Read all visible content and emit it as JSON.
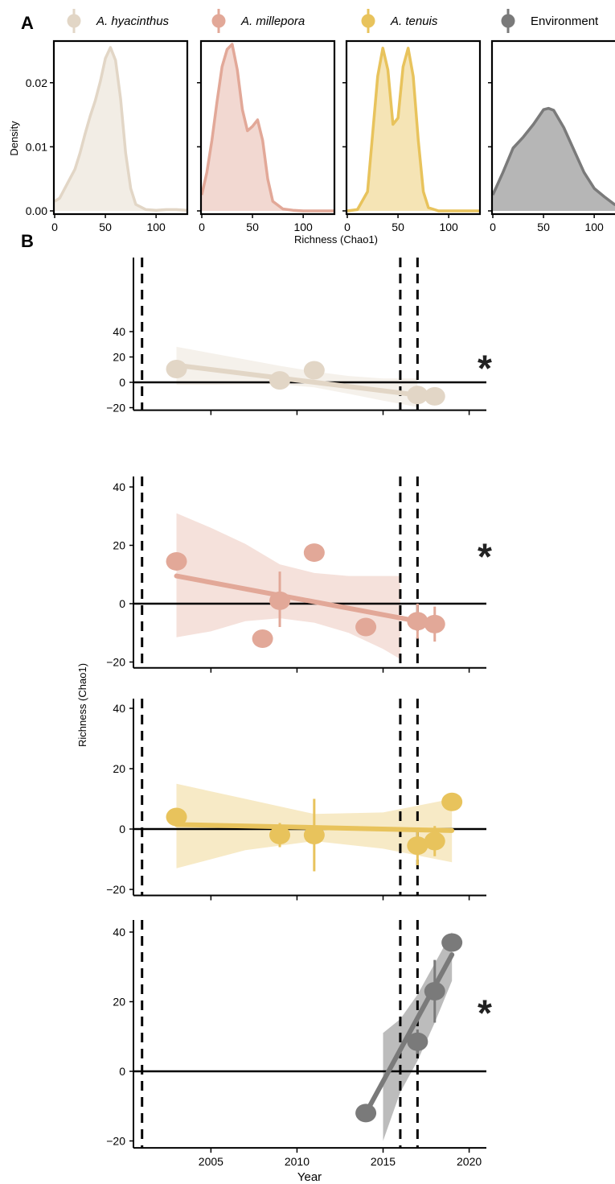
{
  "panel_labels": {
    "a": "A",
    "b": "B"
  },
  "legend": [
    {
      "label": "A. hyacinthus",
      "color": "#e2d6c6",
      "italic": true
    },
    {
      "label": "A. millepora",
      "color": "#e2a898",
      "italic": true
    },
    {
      "label": "A. tenuis",
      "color": "#e8c35c",
      "italic": true
    },
    {
      "label": "Environment",
      "color": "#7a7a7a",
      "italic": false
    }
  ],
  "chart_data": [
    {
      "panel": "A",
      "type": "area",
      "xlabel": "Richness (Chao1)",
      "ylabel": "Density",
      "xlim": [
        0,
        130
      ],
      "ylim": [
        0,
        0.026
      ],
      "xticks": [
        0,
        50,
        100
      ],
      "yticks": [
        0.0,
        0.01,
        0.02
      ],
      "ytick_labels": [
        "0.00",
        "0.01",
        "0.02"
      ],
      "series": [
        {
          "name": "A. hyacinthus",
          "color": "#e2d6c6",
          "x": [
            0,
            5,
            10,
            15,
            20,
            25,
            30,
            35,
            40,
            45,
            50,
            55,
            60,
            65,
            70,
            75,
            80,
            90,
            100,
            110,
            120,
            130
          ],
          "y": [
            0.0015,
            0.002,
            0.0035,
            0.005,
            0.0065,
            0.009,
            0.012,
            0.0148,
            0.0172,
            0.0202,
            0.0238,
            0.0255,
            0.0235,
            0.0175,
            0.009,
            0.0035,
            0.001,
            0.0002,
            0.0001,
            0.0002,
            0.0002,
            0.0001
          ]
        },
        {
          "name": "A. millepora",
          "color": "#e2a898",
          "x": [
            0,
            5,
            10,
            15,
            20,
            25,
            30,
            35,
            40,
            45,
            50,
            55,
            60,
            65,
            70,
            80,
            90,
            100,
            130
          ],
          "y": [
            0.0025,
            0.006,
            0.011,
            0.017,
            0.0225,
            0.0252,
            0.026,
            0.022,
            0.0158,
            0.0125,
            0.0132,
            0.0142,
            0.011,
            0.005,
            0.0015,
            0.0003,
            0.0001,
            0.0,
            0.0
          ]
        },
        {
          "name": "A. tenuis",
          "color": "#e8c35c",
          "x": [
            0,
            10,
            20,
            25,
            30,
            35,
            40,
            45,
            50,
            55,
            60,
            65,
            70,
            75,
            80,
            90,
            100,
            130
          ],
          "y": [
            0.0,
            0.0002,
            0.003,
            0.012,
            0.021,
            0.0254,
            0.022,
            0.0135,
            0.0145,
            0.0225,
            0.0254,
            0.021,
            0.011,
            0.003,
            0.0005,
            0.0,
            0.0,
            0.0
          ]
        },
        {
          "name": "Environment",
          "color": "#7a7a7a",
          "x": [
            0,
            10,
            20,
            30,
            40,
            50,
            55,
            60,
            70,
            80,
            90,
            100,
            110,
            120,
            130
          ],
          "y": [
            0.0025,
            0.006,
            0.0098,
            0.0115,
            0.0135,
            0.0158,
            0.016,
            0.0157,
            0.013,
            0.0095,
            0.006,
            0.0035,
            0.0022,
            0.001,
            0.0004
          ]
        }
      ]
    },
    {
      "panel": "B",
      "type": "scatter",
      "xlabel": "Year",
      "ylabel": "Richness (Chao1)",
      "xlim": [
        2000.5,
        2021
      ],
      "ylim": [
        -22,
        43
      ],
      "xticks": [
        2005,
        2010,
        2015,
        2020
      ],
      "yticks": [
        -20,
        0,
        20,
        40
      ],
      "ytick_labels": [
        "−20",
        "0",
        "20",
        "40"
      ],
      "vlines": [
        2001,
        2016,
        2017
      ],
      "hline": 0,
      "series": [
        {
          "name": "A. hyacinthus",
          "color": "#e2d6c6",
          "significance": "*",
          "points": [
            {
              "x": 2003,
              "y": 10.5,
              "ymin": 10.5,
              "ymax": 10.5
            },
            {
              "x": 2009,
              "y": 1.5,
              "ymin": -5.5,
              "ymax": 7.5
            },
            {
              "x": 2011,
              "y": 9.5,
              "ymin": 9.5,
              "ymax": 9.5
            },
            {
              "x": 2017,
              "y": -10,
              "ymin": -12,
              "ymax": -8
            },
            {
              "x": 2018,
              "y": -11,
              "ymin": -16,
              "ymax": -6
            }
          ],
          "fit": {
            "x0": 2003,
            "y0": 13.5,
            "x1": 2017,
            "y1": -10
          },
          "ci_x": [
            2003,
            2005,
            2007,
            2009,
            2011,
            2013,
            2015,
            2017
          ],
          "ci_lower": [
            -2,
            -2,
            -1.5,
            -1.5,
            -4,
            -9,
            -14.5,
            -19.5
          ],
          "ci_upper": [
            28,
            23,
            18,
            13,
            8.5,
            5,
            3,
            3
          ]
        },
        {
          "name": "A. millepora",
          "color": "#e2a898",
          "significance": "*",
          "points": [
            {
              "x": 2003,
              "y": 14.5,
              "ymin": 14.5,
              "ymax": 14.5
            },
            {
              "x": 2008,
              "y": -12,
              "ymin": -12,
              "ymax": -12
            },
            {
              "x": 2009,
              "y": 1,
              "ymin": -8,
              "ymax": 11
            },
            {
              "x": 2011,
              "y": 17.5,
              "ymin": 17.5,
              "ymax": 17.5
            },
            {
              "x": 2014,
              "y": -8,
              "ymin": -8,
              "ymax": -8
            },
            {
              "x": 2017,
              "y": -6,
              "ymin": -12,
              "ymax": 0
            },
            {
              "x": 2018,
              "y": -7,
              "ymin": -13,
              "ymax": -1
            }
          ],
          "fit": {
            "x0": 2003,
            "y0": 9.5,
            "x1": 2017,
            "y1": -6
          },
          "ci_x": [
            2003,
            2005,
            2007,
            2009,
            2011,
            2013,
            2015,
            2016
          ],
          "ci_lower": [
            -11.5,
            -9.5,
            -6,
            -5,
            -6.5,
            -10,
            -15.5,
            -19
          ],
          "ci_upper": [
            31,
            26,
            20.5,
            13.5,
            10.5,
            9.5,
            9.5,
            9.5
          ]
        },
        {
          "name": "A. tenuis",
          "color": "#e8c35c",
          "significance": "",
          "points": [
            {
              "x": 2003,
              "y": 4,
              "ymin": 4,
              "ymax": 4
            },
            {
              "x": 2009,
              "y": -2,
              "ymin": -6,
              "ymax": 2
            },
            {
              "x": 2011,
              "y": -2,
              "ymin": -14,
              "ymax": 10
            },
            {
              "x": 2017,
              "y": -5.5,
              "ymin": -12,
              "ymax": -1
            },
            {
              "x": 2018,
              "y": -4,
              "ymin": -9,
              "ymax": 1
            },
            {
              "x": 2019,
              "y": 9,
              "ymin": 9,
              "ymax": 9
            }
          ],
          "fit": {
            "x0": 2003,
            "y0": 1.5,
            "x1": 2019,
            "y1": -0.5
          },
          "ci_x": [
            2003,
            2007,
            2011,
            2015,
            2019
          ],
          "ci_lower": [
            -13,
            -7,
            -4,
            -6.5,
            -11
          ],
          "ci_upper": [
            15,
            10,
            5,
            5.5,
            10
          ]
        },
        {
          "name": "Environment",
          "color": "#7a7a7a",
          "significance": "*",
          "points": [
            {
              "x": 2014,
              "y": -12,
              "ymin": -12,
              "ymax": -12
            },
            {
              "x": 2017,
              "y": 8.5,
              "ymin": 5,
              "ymax": 12
            },
            {
              "x": 2018,
              "y": 23,
              "ymin": 14,
              "ymax": 32
            },
            {
              "x": 2019,
              "y": 37,
              "ymin": 37,
              "ymax": 37
            }
          ],
          "fit": {
            "x0": 2014,
            "y0": -12,
            "x1": 2019,
            "y1": 33.5
          },
          "ci_x": [
            2015,
            2016,
            2017,
            2018,
            2019
          ],
          "ci_lower": [
            -20,
            -6,
            3,
            14,
            26
          ],
          "ci_upper": [
            11,
            15,
            22,
            31,
            40
          ]
        }
      ]
    }
  ]
}
